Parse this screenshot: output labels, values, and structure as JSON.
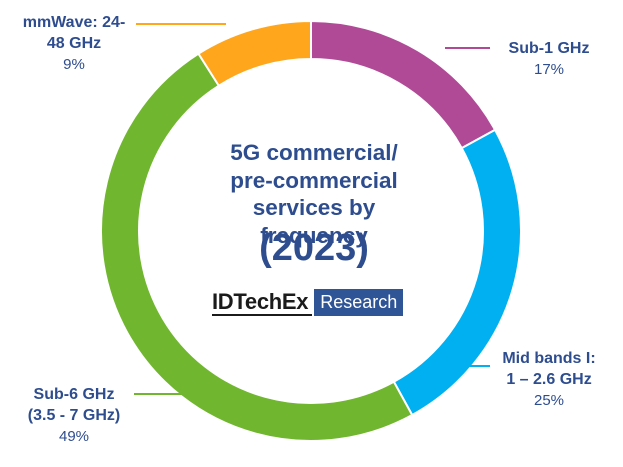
{
  "chart_data": {
    "type": "pie",
    "style": "donut",
    "title": "5G commercial/ pre-commercial services by frequency (2023)",
    "title_lines": [
      "5G commercial/",
      "pre-commercial",
      "services by frequency"
    ],
    "year_label": "(2023)",
    "categories": [
      "Sub-1 GHz",
      "Mid bands I: 1 – 2.6 GHz",
      "Sub-6 GHz (3.5 - 7 GHz)",
      "mmWave: 24-48 GHz"
    ],
    "values": [
      17,
      25,
      49,
      9
    ],
    "slices": [
      {
        "name_lines": [
          "Sub-1 GHz"
        ],
        "pct_label": "17%",
        "value": 17,
        "color": "#b04a97"
      },
      {
        "name_lines": [
          "Mid bands I:",
          "1 – 2.6 GHz"
        ],
        "pct_label": "25%",
        "value": 25,
        "color": "#00b0f0"
      },
      {
        "name_lines": [
          "Sub-6 GHz",
          "(3.5 - 7 GHz)"
        ],
        "pct_label": "49%",
        "value": 49,
        "color": "#70b62f"
      },
      {
        "name_lines": [
          "mmWave: 24-",
          "48 GHz"
        ],
        "pct_label": "9%",
        "value": 9,
        "color": "#ffa61c"
      }
    ],
    "units": "%"
  },
  "brand": {
    "name": "IDTechEx",
    "tag": "Research",
    "color": "#2f5597"
  },
  "colors": {
    "text": "#2e4d8f"
  }
}
